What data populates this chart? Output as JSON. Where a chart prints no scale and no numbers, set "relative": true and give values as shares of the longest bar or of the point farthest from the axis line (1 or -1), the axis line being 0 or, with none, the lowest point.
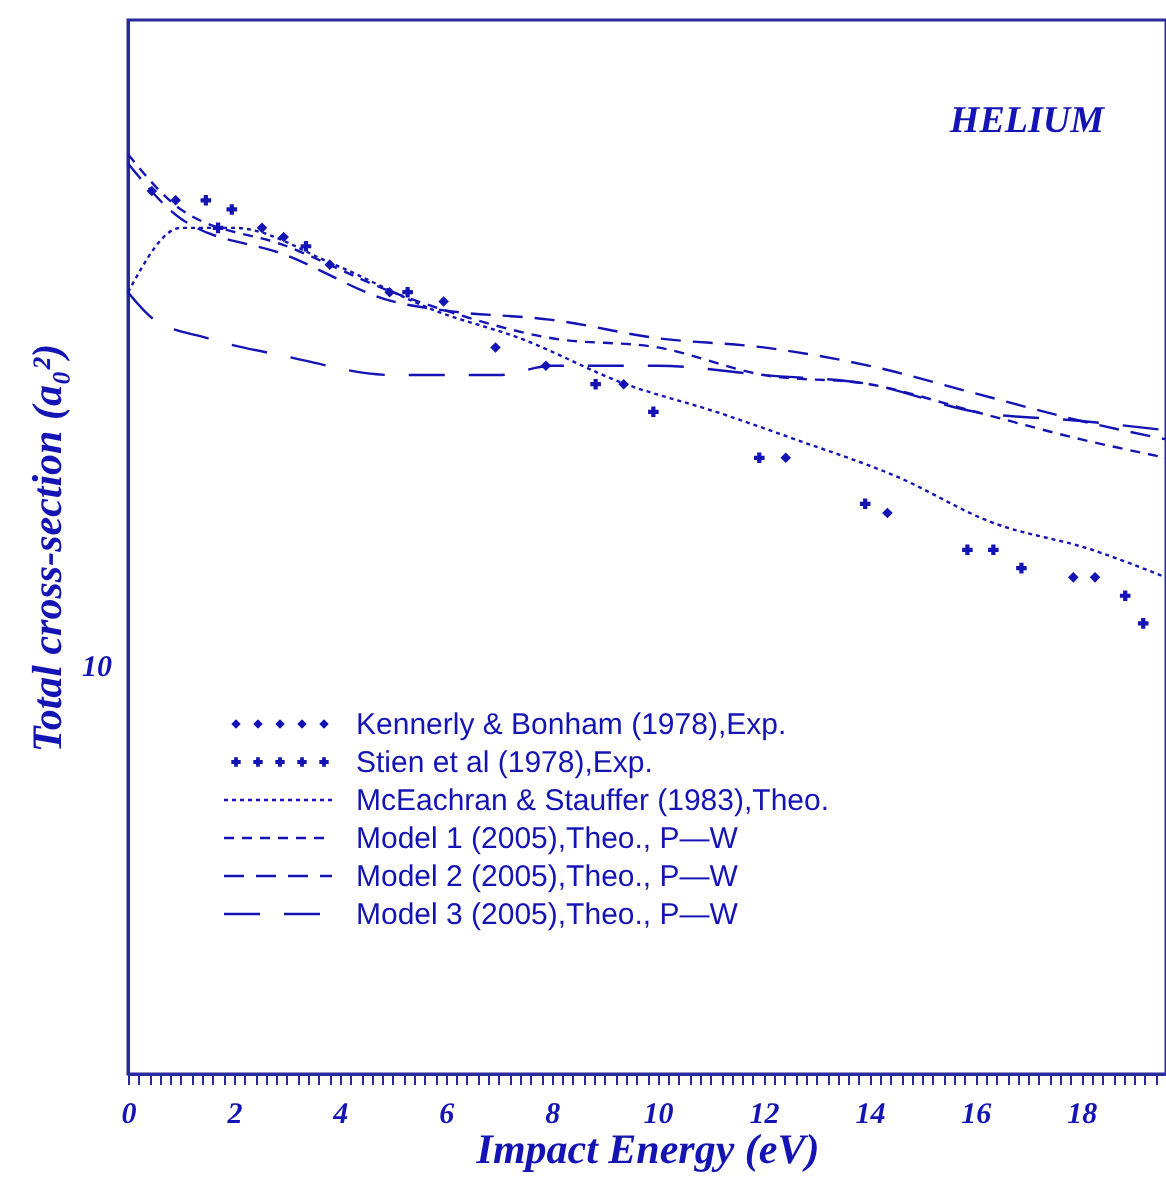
{
  "chart_data": {
    "type": "line",
    "xlabel": "Impact Energy (eV)",
    "ylabel": "Total cross-section (a₀²)",
    "annotations": [
      "HELIUM",
      "10"
    ],
    "relative": true,
    "legend": "bottom left",
    "xlim": [
      0,
      19.6
    ],
    "xticks": [
      0,
      {
        "value": 0.2,
        "label": null
      },
      {
        "value": 0.4,
        "label": null
      },
      {
        "value": 0.6,
        "label": null
      },
      {
        "value": 0.8,
        "label": null
      },
      {
        "value": 1,
        "label": null
      },
      {
        "value": 1.2,
        "label": null
      },
      {
        "value": 1.4,
        "label": null
      },
      {
        "value": 1.6,
        "label": null
      },
      {
        "value": 1.8,
        "label": null
      },
      2,
      {
        "value": 2.2,
        "label": null
      },
      {
        "value": 2.4,
        "label": null
      },
      {
        "value": 2.6,
        "label": null
      },
      {
        "value": 2.8,
        "label": null
      },
      {
        "value": 3,
        "label": null
      },
      {
        "value": 3.2,
        "label": null
      },
      {
        "value": 3.4,
        "label": null
      },
      {
        "value": 3.6,
        "label": null
      },
      {
        "value": 3.8,
        "label": null
      },
      4,
      {
        "value": 4.2,
        "label": null
      },
      {
        "value": 4.4,
        "label": null
      },
      {
        "value": 4.6,
        "label": null
      },
      {
        "value": 4.8,
        "label": null
      },
      {
        "value": 5,
        "label": null
      },
      {
        "value": 5.2,
        "label": null
      },
      {
        "value": 5.4,
        "label": null
      },
      {
        "value": 5.6,
        "label": null
      },
      {
        "value": 5.8,
        "label": null
      },
      6,
      {
        "value": 6.2,
        "label": null
      },
      {
        "value": 6.4,
        "label": null
      },
      {
        "value": 6.6,
        "label": null
      },
      {
        "value": 6.8,
        "label": null
      },
      {
        "value": 7,
        "label": null
      },
      {
        "value": 7.2,
        "label": null
      },
      {
        "value": 7.4,
        "label": null
      },
      {
        "value": 7.6,
        "label": null
      },
      {
        "value": 7.8,
        "label": null
      },
      8,
      {
        "value": 8.2,
        "label": null
      },
      {
        "value": 8.4,
        "label": null
      },
      {
        "value": 8.6,
        "label": null
      },
      {
        "value": 8.8,
        "label": null
      },
      {
        "value": 9,
        "label": null
      },
      {
        "value": 9.2,
        "label": null
      },
      {
        "value": 9.4,
        "label": null
      },
      {
        "value": 9.6,
        "label": null
      },
      {
        "value": 9.8,
        "label": null
      },
      10,
      {
        "value": 10.2,
        "label": null
      },
      {
        "value": 10.4,
        "label": null
      },
      {
        "value": 10.6,
        "label": null
      },
      {
        "value": 10.8,
        "label": null
      },
      {
        "value": 11,
        "label": null
      },
      {
        "value": 11.2,
        "label": null
      },
      {
        "value": 11.4,
        "label": null
      },
      {
        "value": 11.6,
        "label": null
      },
      {
        "value": 11.8,
        "label": null
      },
      12,
      {
        "value": 12.2,
        "label": null
      },
      {
        "value": 12.4,
        "label": null
      },
      {
        "value": 12.6,
        "label": null
      },
      {
        "value": 12.8,
        "label": null
      },
      {
        "value": 13,
        "label": null
      },
      {
        "value": 13.2,
        "label": null
      },
      {
        "value": 13.4,
        "label": null
      },
      {
        "value": 13.6,
        "label": null
      },
      {
        "value": 13.8,
        "label": null
      },
      14,
      {
        "value": 14.2,
        "label": null
      },
      {
        "value": 14.4,
        "label": null
      },
      {
        "value": 14.6,
        "label": null
      },
      {
        "value": 14.8,
        "label": null
      },
      {
        "value": 15,
        "label": null
      },
      {
        "value": 15.2,
        "label": null
      },
      {
        "value": 15.4,
        "label": null
      },
      {
        "value": 15.6,
        "label": null
      },
      {
        "value": 15.8,
        "label": null
      },
      16,
      {
        "value": 16.2,
        "label": null
      },
      {
        "value": 16.4,
        "label": null
      },
      {
        "value": 16.6,
        "label": null
      },
      {
        "value": 16.8,
        "label": null
      },
      {
        "value": 17,
        "label": null
      },
      {
        "value": 17.2,
        "label": null
      },
      {
        "value": 17.4,
        "label": null
      },
      {
        "value": 17.6,
        "label": null
      },
      {
        "value": 17.8,
        "label": null
      },
      18,
      {
        "value": 18.2,
        "label": null
      },
      {
        "value": 18.4,
        "label": null
      },
      {
        "value": 18.6,
        "label": null
      },
      {
        "value": 18.8,
        "label": null
      },
      {
        "value": 19,
        "label": null
      },
      {
        "value": 19.2,
        "label": null
      },
      {
        "value": 19.4,
        "label": null
      }
    ],
    "series": [
      {
        "name": "Kennerly & Bonham (1978),Exp.",
        "type": "scatter",
        "marker": "diamond",
        "color": "#1414b4",
        "x": [
          0.45,
          0.9,
          2.53,
          2.94,
          3.81,
          4.94,
          5.96,
          6.94,
          7.89,
          9.36,
          12.42,
          14.34,
          17.85,
          18.26
        ],
        "values": [
          0.96,
          0.95,
          0.92,
          0.91,
          0.88,
          0.85,
          0.84,
          0.79,
          0.77,
          0.75,
          0.67,
          0.61,
          0.54,
          0.54
        ]
      },
      {
        "name": "Stien et al (1978),Exp.",
        "type": "scatter",
        "marker": "cross",
        "color": "#1414b4",
        "x": [
          1.47,
          1.7,
          1.96,
          3.36,
          5.28,
          8.83,
          9.92,
          11.92,
          13.92,
          15.85,
          16.34,
          16.87,
          18.83,
          19.17
        ],
        "values": [
          0.95,
          0.92,
          0.94,
          0.9,
          0.85,
          0.75,
          0.72,
          0.67,
          0.62,
          0.57,
          0.57,
          0.55,
          0.52,
          0.49
        ]
      },
      {
        "name": "McEachran & Stauffer (1983),Theo.",
        "line_style": "dotted",
        "color": "#1414b4",
        "x": [
          0,
          1.0,
          2.0,
          3.9,
          5.8,
          7.4,
          9.4,
          11.1,
          12.6,
          14.5,
          16.3,
          18.2,
          19.6
        ],
        "values": [
          0.85,
          0.92,
          0.92,
          0.88,
          0.83,
          0.8,
          0.75,
          0.72,
          0.69,
          0.65,
          0.6,
          0.57,
          0.54
        ]
      },
      {
        "name": "Model 1 (2005),Theo., P—W",
        "line_style": "dashed",
        "color": "#1414b4",
        "x": [
          0,
          1,
          3,
          5,
          6,
          8,
          10,
          12,
          14,
          16,
          18,
          19.6
        ],
        "values": [
          1.0,
          0.94,
          0.9,
          0.85,
          0.83,
          0.8,
          0.79,
          0.76,
          0.75,
          0.72,
          0.69,
          0.67
        ]
      },
      {
        "name": "Model 2 (2005),Theo., P—W",
        "line_style": "dashed",
        "color": "#1414b4",
        "x": [
          0,
          1,
          3,
          5,
          6,
          8,
          10,
          12,
          14,
          16,
          18,
          19.6
        ],
        "values": [
          0.99,
          0.93,
          0.89,
          0.84,
          0.83,
          0.82,
          0.8,
          0.79,
          0.77,
          0.74,
          0.71,
          0.69
        ]
      },
      {
        "name": "Model 3 (2005),Theo., P—W",
        "line_style": "dashed",
        "color": "#1414b4",
        "x": [
          0,
          0.5,
          1.5,
          3,
          5,
          7,
          8,
          10,
          12,
          14,
          16,
          18,
          19.6
        ],
        "values": [
          0.85,
          0.82,
          0.8,
          0.78,
          0.76,
          0.76,
          0.77,
          0.77,
          0.76,
          0.75,
          0.72,
          0.71,
          0.7
        ]
      }
    ]
  }
}
